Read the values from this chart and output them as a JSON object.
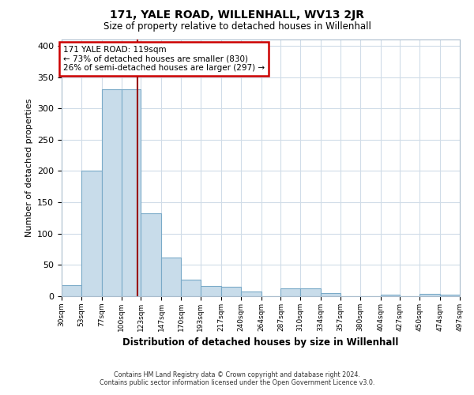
{
  "title": "171, YALE ROAD, WILLENHALL, WV13 2JR",
  "subtitle": "Size of property relative to detached houses in Willenhall",
  "xlabel": "Distribution of detached houses by size in Willenhall",
  "ylabel": "Number of detached properties",
  "bar_color": "#c8dcea",
  "bar_edge_color": "#7aaac8",
  "bin_edges": [
    30,
    53,
    77,
    100,
    123,
    147,
    170,
    193,
    217,
    240,
    264,
    287,
    310,
    334,
    357,
    380,
    404,
    427,
    450,
    474,
    497
  ],
  "bar_heights": [
    18,
    200,
    330,
    330,
    133,
    62,
    26,
    16,
    15,
    8,
    0,
    13,
    13,
    5,
    0,
    0,
    2,
    0,
    4,
    3
  ],
  "tick_labels": [
    "30sqm",
    "53sqm",
    "77sqm",
    "100sqm",
    "123sqm",
    "147sqm",
    "170sqm",
    "193sqm",
    "217sqm",
    "240sqm",
    "264sqm",
    "287sqm",
    "310sqm",
    "334sqm",
    "357sqm",
    "380sqm",
    "404sqm",
    "427sqm",
    "450sqm",
    "474sqm",
    "497sqm"
  ],
  "vline_x": 119,
  "vline_color": "#990000",
  "ylim": [
    0,
    410
  ],
  "yticks": [
    0,
    50,
    100,
    150,
    200,
    250,
    300,
    350,
    400
  ],
  "annotation_title": "171 YALE ROAD: 119sqm",
  "annotation_line1": "← 73% of detached houses are smaller (830)",
  "annotation_line2": "26% of semi-detached houses are larger (297) →",
  "annotation_box_color": "#ffffff",
  "annotation_box_edge": "#cc0000",
  "footer1": "Contains HM Land Registry data © Crown copyright and database right 2024.",
  "footer2": "Contains public sector information licensed under the Open Government Licence v3.0.",
  "background_color": "#ffffff",
  "grid_color": "#d0dce8"
}
